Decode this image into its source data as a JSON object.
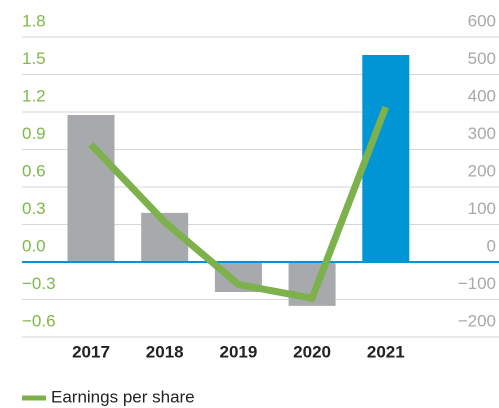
{
  "chart_data": {
    "type": "combo",
    "categories": [
      "2017",
      "2018",
      "2019",
      "2020",
      "2021"
    ],
    "series": [
      {
        "type": "bar",
        "axis": "y2",
        "colors": [
          "#a7a9ac",
          "#a7a9ac",
          "#a7a9ac",
          "#a7a9ac",
          "#0096d6"
        ],
        "values": [
          392,
          131,
          -80,
          -117,
          552
        ]
      },
      {
        "type": "line",
        "name": "Earnings per share",
        "axis": "y",
        "color": "#7cb14c",
        "values": [
          0.94,
          0.32,
          -0.18,
          -0.29,
          1.24
        ]
      }
    ],
    "ylim": [
      -0.6,
      1.8
    ],
    "yticks": [
      1.8,
      1.5,
      1.2,
      0.9,
      0.6,
      0.3,
      {
        "value": 0,
        "label": "0.0"
      },
      {
        "value": -0.3,
        "label": "−0.3"
      },
      {
        "value": -0.6,
        "label": "−0.6"
      }
    ],
    "y2lim": [
      -200,
      600
    ],
    "y2ticks": [
      600,
      500,
      400,
      300,
      200,
      100,
      0,
      {
        "value": -100,
        "label": "−100"
      },
      {
        "value": -200,
        "label": "−200"
      }
    ],
    "grid": true,
    "legend": "bottom-left"
  }
}
